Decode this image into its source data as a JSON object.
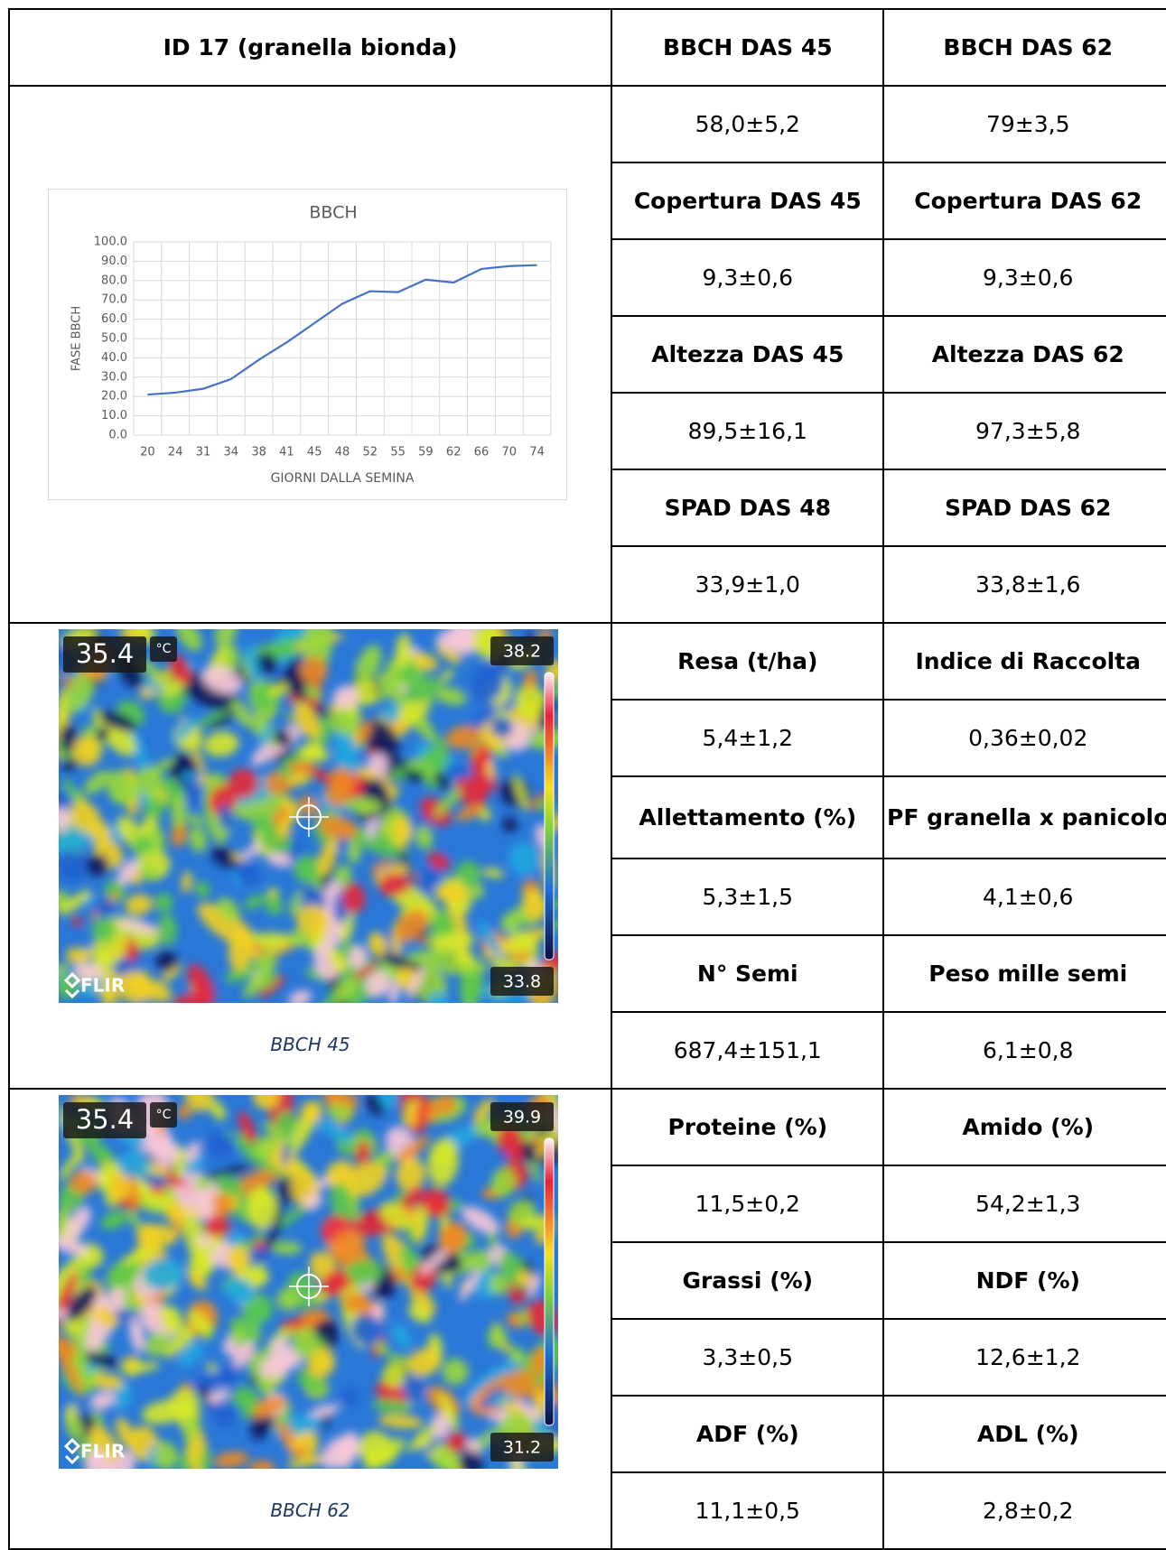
{
  "table": {
    "header": [
      "ID 17 (granella bionda)",
      "BBCH DAS 45",
      "BBCH DAS 62"
    ],
    "rows": [
      [
        "58,0±5,2",
        "79±3,5"
      ],
      [
        "Copertura DAS 45",
        "Copertura DAS 62"
      ],
      [
        "9,3±0,6",
        "9,3±0,6"
      ],
      [
        "Altezza DAS 45",
        "Altezza DAS 62"
      ],
      [
        "89,5±16,1",
        "97,3±5,8"
      ],
      [
        "SPAD DAS 48",
        "SPAD DAS 62"
      ],
      [
        "33,9±1,0",
        "33,8±1,6"
      ],
      [
        "Resa (t/ha)",
        "Indice di Raccolta"
      ],
      [
        "5,4±1,2",
        "0,36±0,02"
      ],
      [
        "Allettamento (%)",
        "PF granella x panicolo"
      ],
      [
        "5,3±1,5",
        "4,1±0,6"
      ],
      [
        "N° Semi",
        "Peso mille semi"
      ],
      [
        "687,4±151,1",
        "6,1±0,8"
      ],
      [
        "Proteine (%)",
        "Amido (%)"
      ],
      [
        "11,5±0,2",
        "54,2±1,3"
      ],
      [
        "Grassi (%)",
        "NDF (%)"
      ],
      [
        "3,3±0,5",
        "12,6±1,2"
      ],
      [
        "ADF (%)",
        "ADL (%)"
      ],
      [
        "11,1±0,5",
        "2,8±0,2"
      ]
    ]
  },
  "chart_data": {
    "type": "line",
    "title": "BBCH",
    "x_label": "GIORNI DALLA SEMINA",
    "y_label": "FASE BBCH",
    "categories": [
      "20",
      "24",
      "31",
      "34",
      "38",
      "41",
      "45",
      "48",
      "52",
      "55",
      "59",
      "62",
      "66",
      "70",
      "74"
    ],
    "series": [
      {
        "name": "BBCH",
        "color": "#4472c4",
        "values": [
          21,
          22,
          24,
          29,
          39,
          48,
          58,
          68,
          74.5,
          74,
          80.5,
          79,
          86,
          87.5,
          88
        ]
      }
    ],
    "ylim": [
      0,
      100
    ],
    "yticks": [
      {
        "value": 0,
        "label": "0.0"
      },
      {
        "value": 10,
        "label": "10.0"
      },
      {
        "value": 20,
        "label": "20.0"
      },
      {
        "value": 30,
        "label": "30.0"
      },
      {
        "value": 40,
        "label": "40.0"
      },
      {
        "value": 50,
        "label": "50.0"
      },
      {
        "value": 60,
        "label": "60.0"
      },
      {
        "value": 70,
        "label": "70.0"
      },
      {
        "value": 80,
        "label": "80.0"
      },
      {
        "value": 90,
        "label": "90.0"
      },
      {
        "value": 100,
        "label": "100.0"
      }
    ],
    "grid": true
  },
  "images": [
    {
      "temp": "35.4",
      "unit": "°C",
      "max": "38.2",
      "min": "33.8",
      "brand": "FLIR",
      "caption": "BBCH 45"
    },
    {
      "temp": "35.4",
      "unit": "°C",
      "max": "39.9",
      "min": "31.2",
      "brand": "FLIR",
      "caption": "BBCH 62"
    }
  ]
}
